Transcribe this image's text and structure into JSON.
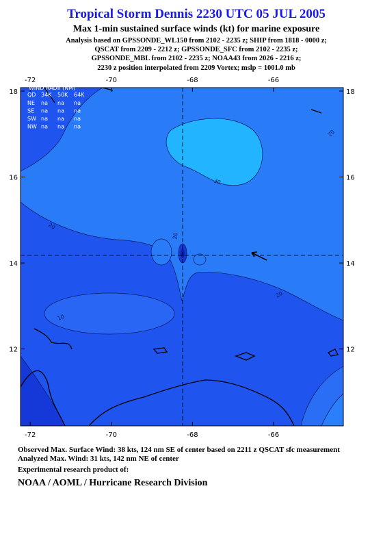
{
  "header": {
    "title": "Tropical Storm Dennis 2230 UTC 05 JUL 2005",
    "subtitle": "Max 1-min sustained surface winds (kt) for marine exposure",
    "analysis": [
      "Analysis based on  GPSSONDE_WL150 from 2102 - 2235 z;  SHIP from 1818 - 0000 z;",
      "QSCAT from 2209 - 2212 z;  GPSSONDE_SFC from 2102 - 2235 z;",
      "GPSSONDE_MBL from 2102 - 2235 z;  NOAA43 from 2026 - 2216 z;",
      "2230 z position interpolated from 2209 Vortex; mslp = 1001.0 mb"
    ]
  },
  "map": {
    "xlim": [
      -72.24,
      -64.28
    ],
    "ylim": [
      10.21,
      18.08
    ],
    "xticks": [
      -72,
      -70,
      -68,
      -66
    ],
    "yticks": [
      12,
      14,
      16,
      18
    ],
    "wind_radii": {
      "title": "WIND RADII (NM)",
      "header": [
        "QD",
        "34K",
        "50K",
        "64K"
      ],
      "rows": [
        [
          "NE",
          "na",
          "na",
          "na"
        ],
        [
          "SE",
          "na",
          "na",
          "na"
        ],
        [
          "SW",
          "na",
          "na",
          "na"
        ],
        [
          "NW",
          "na",
          "na",
          "na"
        ]
      ]
    },
    "contour_labels": [
      "20",
      "30",
      "20",
      "20",
      "20",
      "10"
    ]
  },
  "footer": {
    "lines": [
      "Observed Max. Surface Wind: 38 kts, 124 nm SE of center based on 2211 z QSCAT sfc measurement",
      "Analyzed Max. Wind: 31 kts, 142 nm NE of center",
      "Experimental research product of:"
    ],
    "org": "NOAA / AOML / Hurricane Research Division"
  }
}
